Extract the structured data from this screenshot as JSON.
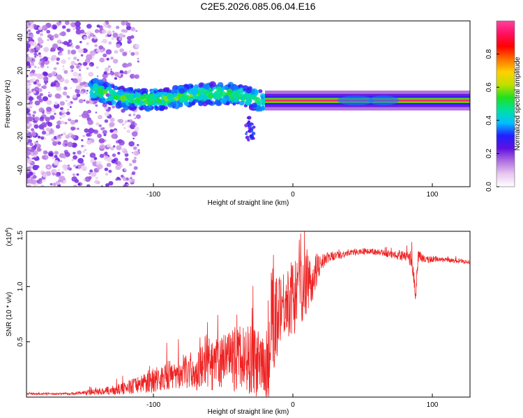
{
  "title": "C2E5.2026.085.06.04.E16",
  "chart_data": [
    {
      "type": "heatmap",
      "name": "spectrogram",
      "xlabel": "Height of straight line (km)",
      "ylabel": "Frequency (Hz)",
      "xlim": [
        -191,
        127
      ],
      "ylim": [
        -50,
        50
      ],
      "xticks": [
        -100,
        0,
        100
      ],
      "yticks": [
        -40,
        -20,
        0,
        20,
        40
      ],
      "colorbar": {
        "label": "Normalized spectral amplitude",
        "range": [
          0,
          1
        ],
        "ticks": [
          "0.0",
          "0.2",
          "0.4",
          "0.6",
          "0.8"
        ],
        "colors": [
          "#ffffff",
          "#e8c8f0",
          "#b070e0",
          "#6010e0",
          "#2020ff",
          "#00c0ff",
          "#00e0a0",
          "#20e020",
          "#c0e000",
          "#ffd000",
          "#ff7000",
          "#ff0000",
          "#ff1060",
          "#ff40a0"
        ]
      },
      "features": [
        {
          "desc": "broadband noise",
          "x_range": [
            -191,
            -120
          ],
          "freq_range": [
            -50,
            50
          ],
          "amplitude": 0.1
        },
        {
          "desc": "noisy carrier",
          "x_range": [
            -145,
            -20
          ],
          "freq_center_start": 9,
          "freq_center_end": 0,
          "amplitude": 0.4
        },
        {
          "desc": "clean carrier",
          "x_range": [
            -20,
            127
          ],
          "freq_center": 2,
          "amplitude": 0.9
        }
      ]
    },
    {
      "type": "line",
      "name": "snr",
      "xlabel": "Height of straight line (km)",
      "ylabel": "SNR (10 * v/v)",
      "ymult_label": "(x10",
      "ymult_exp": "4",
      "ymult_close": ")",
      "xlim": [
        -191,
        127
      ],
      "ylim": [
        0,
        1.5
      ],
      "xticks": [
        -100,
        0,
        100
      ],
      "yticks": [
        0.5,
        1.0,
        1.5
      ],
      "ytick_labels": [
        "0.5",
        "1.0",
        "1.5"
      ],
      "series": [
        {
          "name": "SNR",
          "color": "#ee2222",
          "x": [
            -191,
            -160,
            -150,
            -140,
            -130,
            -120,
            -110,
            -100,
            -90,
            -80,
            -70,
            -60,
            -50,
            -40,
            -30,
            -25,
            -20,
            -17,
            -15,
            -10,
            -5,
            0,
            5,
            10,
            15,
            20,
            25,
            30,
            40,
            50,
            60,
            70,
            80,
            85,
            88,
            90,
            95,
            100,
            110,
            120,
            127
          ],
          "values": [
            0.03,
            0.03,
            0.04,
            0.05,
            0.06,
            0.08,
            0.12,
            0.16,
            0.19,
            0.22,
            0.24,
            0.28,
            0.3,
            0.35,
            0.35,
            0.3,
            0.25,
            0.3,
            0.6,
            0.85,
            0.85,
            0.9,
            0.95,
            1.05,
            1.1,
            1.22,
            1.26,
            1.28,
            1.3,
            1.32,
            1.31,
            1.29,
            1.27,
            1.26,
            0.95,
            1.28,
            1.24,
            1.25,
            1.24,
            1.23,
            1.22
          ],
          "spread": [
            0.01,
            0.01,
            0.02,
            0.03,
            0.04,
            0.06,
            0.08,
            0.12,
            0.14,
            0.16,
            0.18,
            0.22,
            0.25,
            0.3,
            0.35,
            0.3,
            0.25,
            0.8,
            0.6,
            0.35,
            0.3,
            0.35,
            0.35,
            0.3,
            0.2,
            0.08,
            0.05,
            0.04,
            0.03,
            0.03,
            0.03,
            0.03,
            0.05,
            0.08,
            0.1,
            0.06,
            0.03,
            0.03,
            0.02,
            0.02,
            0.02
          ]
        }
      ]
    }
  ]
}
